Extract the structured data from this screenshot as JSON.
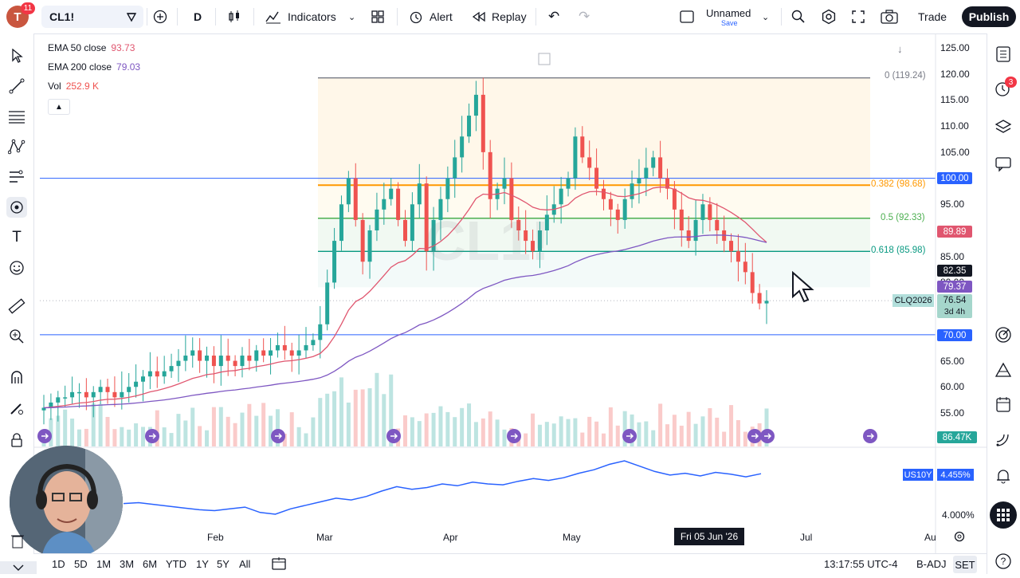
{
  "header": {
    "avatar_letter": "T",
    "avatar_badge": "11",
    "symbol": "CL1!",
    "interval": "D",
    "indicators_label": "Indicators",
    "alert_label": "Alert",
    "replay_label": "Replay",
    "layout_name": "Unnamed",
    "layout_save": "Save",
    "trade_label": "Trade",
    "publish_label": "Publish"
  },
  "legend": {
    "ema50_label": "EMA 50 close",
    "ema50_value": "93.73",
    "ema200_label": "EMA 200 close",
    "ema200_value": "79.03",
    "vol_label": "Vol",
    "vol_value": "252.9 K",
    "collapse_icon": "chevron-up-icon"
  },
  "colors": {
    "up": "#26a69a",
    "down": "#ef5350",
    "ema50": "#e0566f",
    "ema200": "#7e57c2",
    "fib_0": "#787b86",
    "fib_382": "#ff9800",
    "fib_05": "#4caf50",
    "fib_618": "#089981",
    "hline": "#2962ff",
    "us10y": "#2962ff"
  },
  "price_axis": {
    "ticks": [
      "125.00",
      "120.00",
      "115.00",
      "110.00",
      "105.00",
      "100.00",
      "95.00",
      "90.00",
      "85.00",
      "80.00",
      "75.00",
      "70.00",
      "65.00",
      "60.00",
      "55.00"
    ],
    "tags": {
      "level_100": "100.00",
      "ema50": "89.89",
      "last_black": "82.35",
      "ema200": "79.37",
      "symbol_tag": "CLQ2026",
      "last_price": "76.54",
      "countdown": "3d 4h",
      "level_70": "70.00",
      "volume": "86.47K"
    }
  },
  "fib_labels": {
    "f0": "0 (119.24)",
    "f382": "0.382 (98.68)",
    "f05": "0.5 (92.33)",
    "f618": "0.618 (85.98)"
  },
  "watermark": "CL1!",
  "sub_pane": {
    "symbol": "US10Y",
    "value": "4.455%",
    "axis_label": "4.000%"
  },
  "time_axis": {
    "labels": [
      "Feb",
      "Mar",
      "Apr",
      "May",
      "Jul",
      "Au"
    ],
    "crosshair_label": "Fri 05 Jun '26"
  },
  "bottom": {
    "ranges": [
      "1D",
      "5D",
      "1M",
      "3M",
      "6M",
      "YTD",
      "1Y",
      "5Y",
      "All"
    ],
    "clock": "13:17:55 UTC-4",
    "badj": "B-ADJ",
    "set": "SET"
  },
  "right_toolbar_badge": "3",
  "chart_data": {
    "type": "candlestick",
    "ylim": [
      53,
      126
    ],
    "last_price": 76.54,
    "ema50_last": 89.89,
    "ema200_last": 79.37,
    "horizontal_levels": [
      100.0,
      70.0
    ],
    "fibonacci": [
      {
        "level": "0",
        "price": 119.24
      },
      {
        "level": "0.382",
        "price": 98.68
      },
      {
        "level": "0.5",
        "price": 92.33
      },
      {
        "level": "0.618",
        "price": 85.98
      }
    ],
    "closes": [
      56,
      57,
      58,
      58,
      59,
      59,
      58,
      59,
      60,
      59,
      58,
      59,
      60,
      61,
      62,
      63,
      62,
      63,
      64,
      65,
      66,
      67,
      65,
      66,
      64,
      66,
      65,
      64,
      66,
      65,
      67,
      66,
      67,
      68,
      67,
      66,
      67,
      68,
      69,
      72,
      80,
      88,
      95,
      100,
      92,
      84,
      90,
      94,
      96,
      98,
      92,
      88,
      95,
      99,
      86,
      92,
      96,
      100,
      104,
      108,
      112,
      116,
      105,
      96,
      98,
      100,
      92,
      90,
      88,
      86,
      90,
      93,
      95,
      98,
      100,
      108,
      104,
      102,
      98,
      96,
      94,
      92,
      96,
      99,
      100,
      102,
      104,
      100,
      98,
      94,
      90,
      88,
      92,
      95,
      92,
      90,
      88,
      86,
      84,
      82,
      78,
      76,
      76.5
    ],
    "us10y": [
      4.12,
      4.13,
      4.11,
      4.09,
      4.07,
      4.05,
      4.04,
      4.06,
      4.08,
      4.02,
      4.0,
      4.06,
      4.1,
      4.14,
      4.18,
      4.16,
      4.2,
      4.26,
      4.31,
      4.28,
      4.3,
      4.34,
      4.32,
      4.36,
      4.34,
      4.33,
      4.37,
      4.4,
      4.38,
      4.41,
      4.46,
      4.5,
      4.56,
      4.6,
      4.54,
      4.48,
      4.44,
      4.46,
      4.43,
      4.47,
      4.45,
      4.42,
      4.455
    ]
  }
}
